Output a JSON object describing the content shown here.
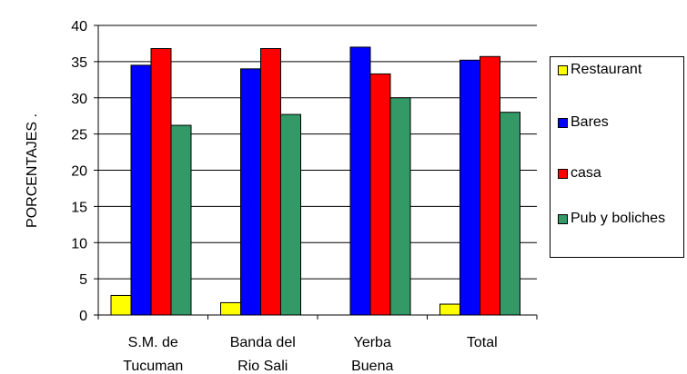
{
  "chart_data": {
    "type": "bar",
    "title": "",
    "xlabel": "",
    "ylabel": "PORCENTAJES .",
    "ylim": [
      0,
      40
    ],
    "y_ticks": [
      "0",
      "5",
      "10",
      "15",
      "20",
      "25",
      "30",
      "35",
      "40"
    ],
    "categories": [
      [
        "S.M. de",
        "Tucuman"
      ],
      [
        "Banda del",
        "Rio Sali"
      ],
      [
        "Yerba",
        "Buena"
      ],
      [
        "Total"
      ]
    ],
    "series": [
      {
        "name": "Restaurant",
        "color": "#ffff00",
        "values": [
          2.7,
          1.7,
          0,
          1.5
        ]
      },
      {
        "name": "Bares",
        "color": "#0000ff",
        "values": [
          34.5,
          34.0,
          37.0,
          35.2
        ]
      },
      {
        "name": "casa",
        "color": "#ff0000",
        "values": [
          36.8,
          36.8,
          33.3,
          35.7
        ]
      },
      {
        "name": "Pub y boliches",
        "color": "#339966",
        "values": [
          26.2,
          27.7,
          30.0,
          28.0
        ]
      }
    ],
    "legend_position": "right",
    "grid": "horizontal"
  }
}
